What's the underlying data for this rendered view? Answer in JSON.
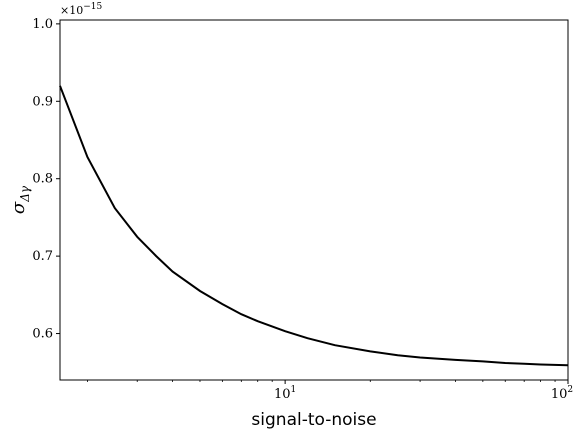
{
  "chart_data": {
    "type": "line",
    "xlabel": "signal-to-noise",
    "ylabel": "σ_Δγ",
    "y_offset_text": "×10^-15",
    "xscale": "log",
    "xlim": [
      1.6,
      100
    ],
    "ylim": [
      0.54,
      1.005
    ],
    "grid": false,
    "x_ticks": [
      {
        "value": 10,
        "base": "10",
        "exp": "1"
      },
      {
        "value": 100,
        "base": "10",
        "exp": "2"
      }
    ],
    "y_ticks": [
      "0.6",
      "0.7",
      "0.8",
      "0.9",
      "1.0"
    ],
    "series": [
      {
        "color": "#000000",
        "x": [
          1.6,
          2,
          2.5,
          3,
          3.5,
          4,
          5,
          6,
          7,
          8,
          10,
          12,
          15,
          20,
          25,
          30,
          40,
          50,
          60,
          70,
          80,
          100
        ],
        "y": [
          0.92,
          0.828,
          0.762,
          0.725,
          0.7,
          0.68,
          0.655,
          0.638,
          0.625,
          0.616,
          0.603,
          0.594,
          0.585,
          0.577,
          0.572,
          0.569,
          0.566,
          0.564,
          0.562,
          0.561,
          0.56,
          0.559
        ]
      }
    ]
  }
}
